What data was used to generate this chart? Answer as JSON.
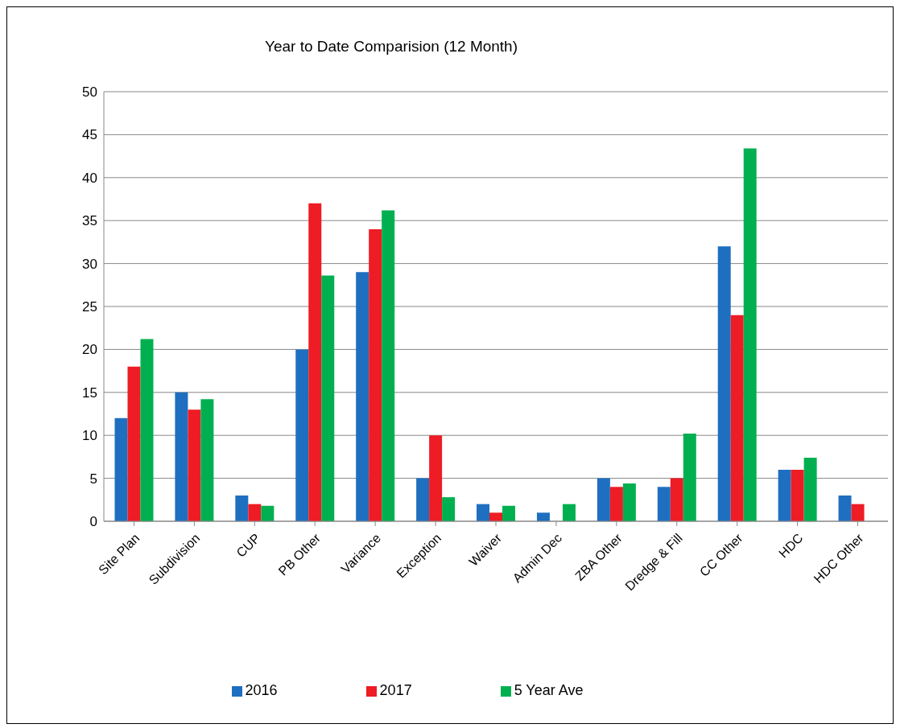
{
  "chart_data": {
    "type": "bar",
    "title": "Year to Date Comparision (12 Month)",
    "categories": [
      "Site Plan",
      "Subdivision",
      "CUP",
      "PB Other",
      "Variance",
      "Exception",
      "Waiver",
      "Admin Dec",
      "ZBA Other",
      "Dredge & Fill",
      "CC Other",
      "HDC",
      "HDC Other"
    ],
    "series": [
      {
        "name": "2016",
        "color": "#1f6fc0",
        "values": [
          12,
          15,
          3,
          20,
          29,
          5,
          2,
          1,
          5,
          4,
          32,
          6,
          3
        ]
      },
      {
        "name": "2017",
        "color": "#ee1c24",
        "values": [
          18,
          13,
          2,
          37,
          34,
          10,
          1,
          0,
          4,
          5,
          24,
          6,
          2
        ]
      },
      {
        "name": "5 Year Ave",
        "color": "#00b050",
        "values": [
          21.2,
          14.2,
          1.8,
          28.6,
          36.2,
          2.8,
          1.8,
          2,
          4.4,
          10.2,
          43.4,
          7.4,
          0
        ]
      }
    ],
    "ylim": [
      0,
      50
    ],
    "yticks": [
      0,
      5,
      10,
      15,
      20,
      25,
      30,
      35,
      40,
      45,
      50
    ],
    "grid": "y",
    "legend": "bottom"
  }
}
